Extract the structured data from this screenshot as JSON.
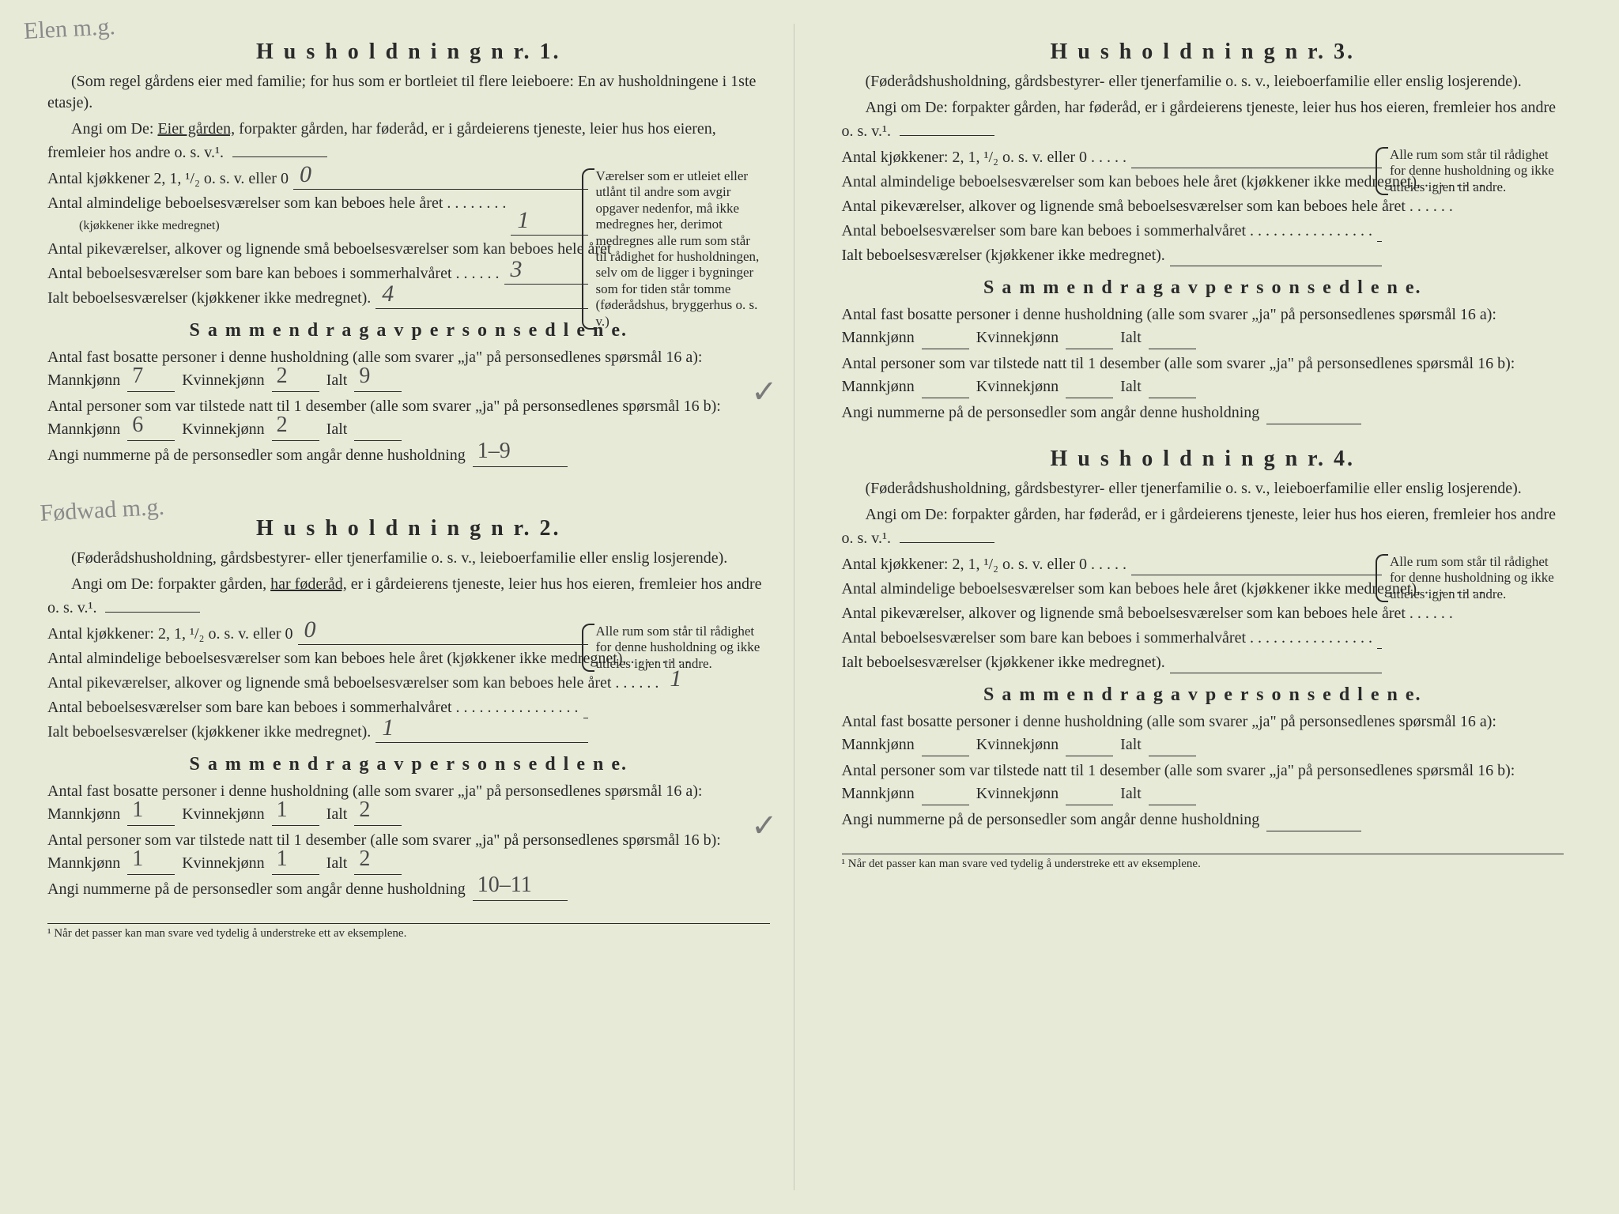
{
  "colors": {
    "paper": "#e8ead8",
    "ink": "#2a2a2a",
    "handwrite": "#4a4a4a",
    "faint": "#8a8a8a"
  },
  "typography": {
    "body_size": 20,
    "heading_size": 28,
    "subheading_size": 24,
    "footnote_size": 15,
    "sidebox_size": 17,
    "handwrite_size": 30
  },
  "margin_notes": {
    "top_left": "Elen\nm.g.",
    "h2_note": "Fødwad\nm.g."
  },
  "footnote": "¹  Når det passer kan man svare ved tydelig å understreke ett av eksemplene.",
  "households": [
    {
      "title": "H u s h o l d n i n g   n r.   1.",
      "desc_a": "(Som regel gårdens eier med familie; for hus som er bortleiet til flere leieboere: En av husholdningene i 1ste etasje).",
      "angi_pre": "Angi om De:  ",
      "angi_under": "Eier gården,",
      "angi_post": " forpakter gården, har føderåd, er i gårdeierens tjeneste, leier hus hos eieren, fremleier hos andre o. s. v.¹.",
      "rows": [
        {
          "label": "Antal kjøkkener 2, 1, ¹/₂ o. s. v. eller 0",
          "value": "0"
        },
        {
          "label": "Antal almindelige beboelsesværelser som kan beboes hele året . . . . . . . .",
          "sublabel": "(kjøkkener ikke medregnet)",
          "value": "1"
        },
        {
          "label": "Antal pikeværelser, alkover og lignende små beboelsesværelser som kan beboes hele året",
          "value": ""
        },
        {
          "label": "Antal beboelsesværelser som bare kan beboes i sommerhalvåret . . . . . .",
          "value": "3"
        },
        {
          "label": "Ialt beboelsesværelser (kjøkkener ikke medregnet).",
          "value": "4"
        }
      ],
      "sidebox": "Værelser som er utleiet eller utlånt til andre som avgir opgaver nedenfor, må ikke medregnes her, derimot medregnes alle rum som står til rådighet for husholdningen, selv om de ligger i bygninger som for tiden står tomme (føderådshus, bryggerhus o. s. v.)",
      "summary_heading": "S a m m e n d r a g   a v   p e r s o n s e d l e n e.",
      "sum_a_pre": "Antal fast bosatte personer i denne husholdning (alle som svarer „ja\" på personsedlenes spørsmål 16 a): Mannkjønn",
      "sum_a_m": "7",
      "sum_a_kvinne": "Kvinnekjønn",
      "sum_a_k": "2",
      "sum_a_ialt": "Ialt",
      "sum_a_i": "9",
      "sum_b_pre": "Antal personer som var tilstede natt til 1 desember (alle som svarer „ja\" på personsedlenes spørsmål 16 b): Mannkjønn",
      "sum_b_m": "6",
      "sum_b_k": "2",
      "sum_b_i": "",
      "angi_num": "Angi nummerne på de personsedler som angår denne husholdning",
      "angi_num_val": "1–9",
      "check": "✓"
    },
    {
      "title": "H u s h o l d n i n g   n r.   2.",
      "desc_a": "(Føderådshusholdning, gårdsbestyrer- eller tjenerfamilie o. s. v., leieboerfamilie eller enslig losjerende).",
      "angi_pre": "Angi om De:  forpakter gården, ",
      "angi_under": "har føderåd,",
      "angi_post": " er i gårdeierens tjeneste, leier hus hos eieren, fremleier hos andre o. s. v.¹.",
      "rows": [
        {
          "label": "Antal kjøkkener: 2, 1, ¹/₂ o. s. v. eller 0",
          "value": "0"
        },
        {
          "label": "Antal almindelige beboelsesværelser som kan beboes hele året (kjøkkener ikke medregnet). . . . . . . . .",
          "value": ""
        },
        {
          "label": "Antal pikeværelser, alkover og lignende små beboelsesværelser som kan beboes hele året . . . . . .",
          "value": "1"
        },
        {
          "label": "Antal beboelsesværelser som bare kan beboes i sommerhalvåret . . . . . . . . . . . . . . . .",
          "value": ""
        },
        {
          "label": "Ialt beboelsesværelser  (kjøkkener ikke medregnet).",
          "value": "1"
        }
      ],
      "sidebox": "Alle rum som står til rådighet for denne husholdning og ikke utleies igjen til andre.",
      "summary_heading": "S a m m e n d r a g   a v   p e r s o n s e d l e n e.",
      "sum_a_pre": "Antal fast bosatte personer i denne husholdning (alle som svarer „ja\" på personsedlenes spørsmål 16 a): Mannkjønn",
      "sum_a_m": "1",
      "sum_a_k": "1",
      "sum_a_i": "2",
      "sum_b_pre": "Antal personer som var tilstede natt til 1 desember (alle som svarer „ja\" på personsedlenes spørsmål 16 b): Mannkjønn",
      "sum_b_m": "1",
      "sum_b_k": "1",
      "sum_b_i": "2",
      "angi_num": "Angi nummerne på de personsedler som angår denne husholdning",
      "angi_num_val": "10–11",
      "check": "✓"
    },
    {
      "title": "H u s h o l d n i n g   n r.   3.",
      "desc_a": "(Føderådshusholdning, gårdsbestyrer- eller tjenerfamilie o. s. v., leieboerfamilie eller enslig losjerende).",
      "angi_pre": "Angi om De:  forpakter gården, har føderåd, er i gårdeierens tjeneste, leier hus hos eieren, fremleier hos andre o. s. v.¹.",
      "angi_under": "",
      "angi_post": "",
      "rows": [
        {
          "label": "Antal kjøkkener: 2, 1, ¹/₂ o. s. v. eller 0  . . . . .",
          "value": ""
        },
        {
          "label": "Antal almindelige beboelsesværelser som kan beboes hele året (kjøkkener ikke medregnet). . . . . . . . .",
          "value": ""
        },
        {
          "label": "Antal pikeværelser, alkover og lignende små beboelsesværelser som kan beboes hele året . . . . . .",
          "value": ""
        },
        {
          "label": "Antal beboelsesværelser som bare kan beboes i sommerhalvåret . . . . . . . . . . . . . . . .",
          "value": ""
        },
        {
          "label": "Ialt beboelsesværelser  (kjøkkener ikke medregnet).",
          "value": ""
        }
      ],
      "sidebox": "Alle rum som står til rådighet for denne husholdning og ikke utleies igjen til andre.",
      "summary_heading": "S a m m e n d r a g   a v   p e r s o n s e d l e n e.",
      "sum_a_pre": "Antal fast bosatte personer i denne husholdning (alle som svarer „ja\" på personsedlenes spørsmål 16 a): Mannkjønn",
      "sum_a_m": "",
      "sum_a_k": "",
      "sum_a_i": "",
      "sum_b_pre": "Antal personer som var tilstede natt til 1 desember (alle som svarer „ja\" på personsedlenes spørsmål 16 b): Mannkjønn",
      "sum_b_m": "",
      "sum_b_k": "",
      "sum_b_i": "",
      "angi_num": "Angi nummerne på de personsedler som angår denne husholdning",
      "angi_num_val": ""
    },
    {
      "title": "H u s h o l d n i n g   n r.   4.",
      "desc_a": "(Føderådshusholdning, gårdsbestyrer- eller tjenerfamilie o. s. v., leieboerfamilie eller enslig losjerende).",
      "angi_pre": "Angi om De:  forpakter gården, har føderåd, er i gårdeierens tjeneste, leier hus hos eieren, fremleier hos andre o. s. v.¹.",
      "angi_under": "",
      "angi_post": "",
      "rows": [
        {
          "label": "Antal kjøkkener: 2, 1, ¹/₂ o. s. v. eller 0  . . . . .",
          "value": ""
        },
        {
          "label": "Antal almindelige beboelsesværelser som kan beboes hele året (kjøkkener ikke medregnet). . . . . . . . .",
          "value": ""
        },
        {
          "label": "Antal pikeværelser, alkover og lignende små beboelsesværelser som kan beboes hele året . . . . . .",
          "value": ""
        },
        {
          "label": "Antal beboelsesværelser som bare kan beboes i sommerhalvåret . . . . . . . . . . . . . . . .",
          "value": ""
        },
        {
          "label": "Ialt beboelsesværelser  (kjøkkener ikke medregnet).",
          "value": ""
        }
      ],
      "sidebox": "Alle rum som står til rådighet for denne husholdning og ikke utleies igjen til andre.",
      "summary_heading": "S a m m e n d r a g   a v   p e r s o n s e d l e n e.",
      "sum_a_pre": "Antal fast bosatte personer i denne husholdning (alle som svarer „ja\" på personsedlenes spørsmål 16 a): Mannkjønn",
      "sum_a_m": "",
      "sum_a_k": "",
      "sum_a_i": "",
      "sum_b_pre": "Antal personer som var tilstede natt til 1 desember (alle som svarer „ja\" på personsedlenes spørsmål 16 b): Mannkjønn",
      "sum_b_m": "",
      "sum_b_k": "",
      "sum_b_i": "",
      "angi_num": "Angi nummerne på de personsedler som angår denne husholdning",
      "angi_num_val": ""
    }
  ],
  "labels": {
    "kvinne": "Kvinnekjønn",
    "ialt": "Ialt"
  }
}
